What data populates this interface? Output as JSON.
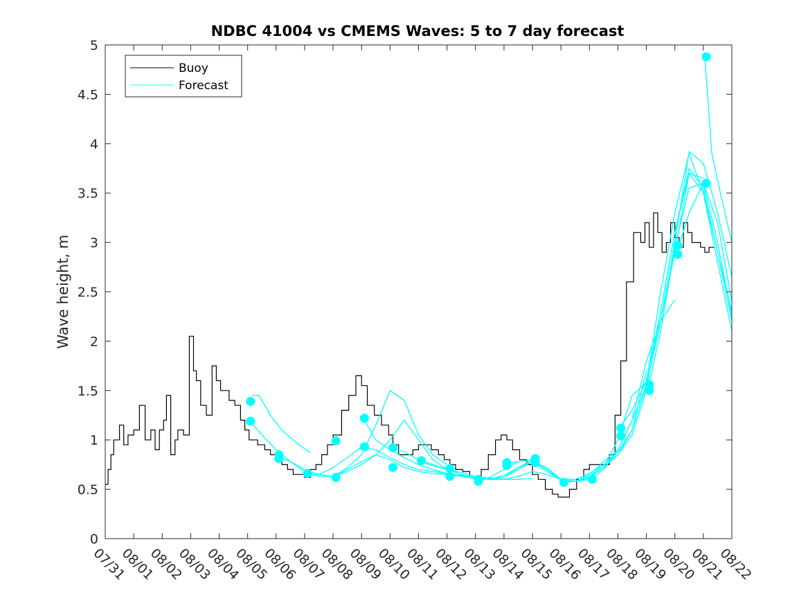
{
  "chart_data": {
    "type": "line",
    "title": "NDBC 41004 vs CMEMS Waves: 5 to 7 day forecast",
    "xlabel": "",
    "ylabel": "Wave height, m",
    "ylim": [
      0,
      5
    ],
    "yticks": [
      0,
      0.5,
      1,
      1.5,
      2,
      2.5,
      3,
      3.5,
      4,
      4.5,
      5
    ],
    "xlim_days": [
      0,
      22
    ],
    "xtick_labels": [
      "07/31",
      "08/01",
      "08/02",
      "08/03",
      "08/04",
      "08/05",
      "08/06",
      "08/07",
      "08/08",
      "08/09",
      "08/10",
      "08/11",
      "08/12",
      "08/13",
      "08/14",
      "08/15",
      "08/16",
      "08/17",
      "08/18",
      "08/19",
      "08/20",
      "08/21",
      "08/22"
    ],
    "grid": false,
    "legend_position": "top-left",
    "legend": [
      "Buoy",
      "Forecast"
    ],
    "colors": {
      "buoy": "#000000",
      "forecast": "#00ffff"
    },
    "buoy": {
      "name": "Buoy",
      "x": [
        0,
        0.1,
        0.2,
        0.3,
        0.5,
        0.65,
        0.8,
        1.0,
        1.2,
        1.4,
        1.6,
        1.75,
        1.9,
        2.05,
        2.15,
        2.3,
        2.45,
        2.55,
        2.75,
        2.95,
        3.1,
        3.2,
        3.35,
        3.55,
        3.75,
        3.9,
        4.05,
        4.2,
        4.35,
        4.55,
        4.75,
        4.9,
        5.05,
        5.2,
        5.35,
        5.6,
        5.8,
        6.0,
        6.2,
        6.4,
        6.6,
        6.8,
        7.0,
        7.2,
        7.4,
        7.6,
        7.8,
        8.0,
        8.3,
        8.55,
        8.8,
        9.0,
        9.2,
        9.45,
        9.7,
        9.95,
        10.1,
        10.3,
        10.55,
        10.8,
        11.0,
        11.2,
        11.45,
        11.7,
        11.9,
        12.1,
        12.3,
        12.55,
        12.8,
        13.0,
        13.2,
        13.45,
        13.7,
        13.9,
        14.1,
        14.3,
        14.55,
        14.8,
        15.0,
        15.2,
        15.45,
        15.7,
        15.9,
        16.1,
        16.3,
        16.55,
        16.8,
        17.0,
        17.2,
        17.45,
        17.7,
        17.9,
        18.1,
        18.3,
        18.55,
        18.8,
        18.95,
        19.1,
        19.25,
        19.4,
        19.55,
        19.7,
        19.85,
        20.0,
        20.15,
        20.3,
        20.45,
        20.6,
        20.75,
        20.9,
        21.05,
        21.2,
        21.4
      ],
      "y": [
        0.55,
        0.7,
        0.85,
        1.0,
        1.15,
        0.95,
        1.05,
        1.1,
        1.35,
        1.0,
        1.1,
        0.9,
        1.1,
        1.2,
        1.45,
        0.85,
        1.0,
        1.1,
        1.05,
        2.05,
        1.7,
        1.6,
        1.35,
        1.25,
        1.75,
        1.6,
        1.5,
        1.5,
        1.4,
        1.35,
        1.2,
        1.1,
        1.0,
        1.0,
        0.95,
        0.9,
        0.85,
        0.8,
        0.75,
        0.7,
        0.65,
        0.65,
        0.62,
        0.7,
        0.75,
        0.85,
        0.95,
        1.05,
        1.3,
        1.45,
        1.65,
        1.55,
        1.35,
        1.25,
        1.15,
        1.05,
        0.95,
        0.85,
        0.85,
        0.9,
        0.95,
        0.95,
        0.9,
        0.85,
        0.8,
        0.75,
        0.7,
        0.68,
        0.62,
        0.6,
        0.7,
        0.85,
        1.0,
        1.05,
        1.0,
        0.9,
        0.8,
        0.75,
        0.65,
        0.6,
        0.5,
        0.45,
        0.42,
        0.42,
        0.5,
        0.6,
        0.7,
        0.75,
        0.75,
        0.75,
        0.85,
        1.25,
        1.8,
        2.6,
        3.1,
        3.0,
        3.2,
        2.95,
        3.3,
        3.1,
        2.9,
        3.0,
        3.2,
        3.05,
        2.95,
        3.2,
        3.1,
        3.0,
        3.0,
        2.95,
        2.9,
        2.95,
        2.95
      ]
    },
    "forecast_lines": [
      {
        "name": "Forecast",
        "x": [
          5.15,
          5.4,
          5.8,
          6.2,
          6.8,
          7.2
        ],
        "y": [
          1.45,
          1.45,
          1.25,
          1.1,
          0.95,
          0.87
        ]
      },
      {
        "name": "Forecast",
        "x": [
          5.05,
          5.5,
          6.0,
          6.5,
          7.0,
          7.5,
          8.0,
          8.5,
          9.0,
          9.5,
          10.0,
          10.5,
          11.0,
          11.5,
          12.0
        ],
        "y": [
          1.2,
          1.05,
          0.9,
          0.78,
          0.68,
          0.63,
          0.63,
          0.72,
          0.85,
          1.15,
          1.5,
          1.4,
          1.05,
          0.85,
          0.75
        ]
      },
      {
        "name": "Forecast",
        "x": [
          6.05,
          6.5,
          7.0,
          7.5,
          8.0,
          8.5,
          9.0,
          9.5,
          10.0,
          10.5,
          11.0,
          11.5,
          12.0,
          12.5,
          13.0
        ],
        "y": [
          0.83,
          0.78,
          0.7,
          0.65,
          0.63,
          0.68,
          0.75,
          0.85,
          1.0,
          1.2,
          1.0,
          0.8,
          0.7,
          0.65,
          0.6
        ]
      },
      {
        "name": "Forecast",
        "x": [
          7.05,
          7.5,
          8.0,
          8.5,
          9.0,
          9.5,
          10.0,
          10.5,
          11.0,
          11.5,
          12.0,
          12.5,
          13.0,
          13.5,
          14.0
        ],
        "y": [
          0.65,
          0.65,
          0.72,
          0.82,
          0.93,
          0.9,
          0.82,
          0.75,
          0.7,
          0.68,
          0.66,
          0.64,
          0.62,
          0.6,
          0.6
        ]
      },
      {
        "name": "Forecast",
        "x": [
          8.05,
          8.5,
          9.0,
          9.5,
          10.0,
          10.5,
          11.0,
          11.5,
          12.0,
          12.5,
          13.0,
          13.5,
          14.0,
          14.5,
          15.0
        ],
        "y": [
          0.63,
          0.7,
          0.78,
          0.85,
          0.8,
          0.72,
          0.68,
          0.66,
          0.65,
          0.63,
          0.62,
          0.61,
          0.6,
          0.6,
          0.61
        ]
      },
      {
        "name": "Forecast",
        "x": [
          9.05,
          9.5,
          10.0,
          10.5,
          11.0,
          11.5,
          12.0,
          12.5,
          13.0,
          13.5,
          14.0,
          14.5,
          15.0,
          15.5,
          16.0
        ],
        "y": [
          1.22,
          1.0,
          0.9,
          0.82,
          0.75,
          0.7,
          0.66,
          0.63,
          0.61,
          0.6,
          0.6,
          0.63,
          0.68,
          0.65,
          0.6
        ]
      },
      {
        "name": "Forecast",
        "x": [
          10.05,
          10.5,
          11.0,
          11.5,
          12.0,
          12.5,
          13.0,
          13.5,
          14.0,
          14.5,
          15.0,
          15.5,
          16.0,
          16.5,
          17.0
        ],
        "y": [
          0.92,
          0.88,
          0.8,
          0.75,
          0.7,
          0.67,
          0.63,
          0.61,
          0.62,
          0.7,
          0.78,
          0.72,
          0.6,
          0.58,
          0.6
        ]
      },
      {
        "name": "Forecast",
        "x": [
          11.05,
          11.5,
          12.0,
          12.5,
          13.0,
          13.5,
          14.0,
          14.5,
          15.0,
          15.5,
          16.0,
          16.5,
          17.0,
          17.5,
          18.0
        ],
        "y": [
          0.78,
          0.74,
          0.7,
          0.65,
          0.62,
          0.61,
          0.62,
          0.72,
          0.8,
          0.7,
          0.6,
          0.58,
          0.62,
          0.72,
          0.85
        ]
      },
      {
        "name": "Forecast",
        "x": [
          12.05,
          12.5,
          13.0,
          13.5,
          14.0,
          14.5,
          15.0,
          15.5,
          16.0,
          16.5,
          17.0,
          17.5,
          18.0,
          18.5,
          19.0
        ],
        "y": [
          0.7,
          0.65,
          0.62,
          0.6,
          0.64,
          0.72,
          0.78,
          0.68,
          0.6,
          0.6,
          0.66,
          0.75,
          0.85,
          1.1,
          1.7
        ]
      },
      {
        "name": "Forecast",
        "x": [
          13.05,
          13.5,
          14.0,
          14.5,
          15.0,
          15.5,
          16.0,
          16.5,
          17.0,
          17.5,
          18.0,
          18.5,
          19.0,
          19.5,
          20.0
        ],
        "y": [
          0.58,
          0.62,
          0.7,
          0.78,
          0.8,
          0.7,
          0.6,
          0.58,
          0.65,
          0.78,
          0.9,
          1.2,
          1.8,
          2.2,
          2.42
        ]
      },
      {
        "name": "Forecast",
        "x": [
          14.05,
          14.5,
          15.0,
          15.5,
          16.0,
          16.5,
          17.0,
          17.5,
          18.0,
          18.5,
          19.0,
          19.5,
          20.0,
          20.5,
          21.0
        ],
        "y": [
          0.76,
          0.78,
          0.8,
          0.7,
          0.6,
          0.58,
          0.63,
          0.75,
          0.88,
          1.1,
          1.55,
          2.2,
          2.9,
          3.7,
          3.65
        ]
      },
      {
        "name": "Forecast",
        "x": [
          15.05,
          15.5,
          16.0,
          16.5,
          17.0,
          17.5,
          18.0,
          18.5,
          19.0,
          19.5,
          20.0,
          20.5,
          21.0,
          21.5,
          22.0
        ],
        "y": [
          0.78,
          0.7,
          0.6,
          0.58,
          0.62,
          0.72,
          0.85,
          1.05,
          1.5,
          2.3,
          3.1,
          3.75,
          3.55,
          2.9,
          2.2
        ]
      },
      {
        "name": "Forecast",
        "x": [
          16.05,
          16.5,
          17.0,
          17.5,
          18.0,
          18.5,
          19.0,
          19.5,
          20.0,
          20.5,
          21.0,
          21.5,
          22.0
        ],
        "y": [
          0.57,
          0.58,
          0.63,
          0.72,
          1.0,
          1.45,
          1.58,
          2.5,
          3.3,
          3.9,
          3.5,
          2.8,
          2.1
        ]
      },
      {
        "name": "Forecast",
        "x": [
          17.05,
          17.5,
          18.0,
          18.5,
          19.0,
          19.5,
          20.0,
          20.5,
          21.0,
          21.5,
          22.0
        ],
        "y": [
          0.6,
          0.7,
          0.9,
          1.2,
          1.55,
          2.2,
          3.0,
          3.92,
          3.8,
          3.3,
          2.65
        ]
      },
      {
        "name": "Forecast",
        "x": [
          18.05,
          18.5,
          19.0,
          19.5,
          20.0,
          20.5,
          21.0,
          21.5,
          22.0
        ],
        "y": [
          1.12,
          1.3,
          1.6,
          2.3,
          3.1,
          3.7,
          3.5,
          2.9,
          2.3
        ]
      },
      {
        "name": "Forecast",
        "x": [
          19.05,
          19.5,
          20.0,
          20.5,
          21.0,
          21.5,
          22.0
        ],
        "y": [
          1.5,
          2.1,
          2.95,
          3.55,
          3.6,
          3.0,
          2.25
        ]
      },
      {
        "name": "Forecast",
        "x": [
          20.05,
          20.5,
          21.0,
          21.5,
          22.0
        ],
        "y": [
          2.88,
          3.3,
          3.6,
          3.2,
          2.4
        ]
      },
      {
        "name": "Forecast",
        "x": [
          21.05,
          21.3,
          21.6,
          22.0
        ],
        "y": [
          4.88,
          3.9,
          3.5,
          3.0
        ]
      }
    ],
    "forecast_markers": {
      "x": [
        5.1,
        5.1,
        6.1,
        6.1,
        7.1,
        8.1,
        8.1,
        9.1,
        9.1,
        10.1,
        10.1,
        11.1,
        12.1,
        12.1,
        13.1,
        13.1,
        14.1,
        14.1,
        15.1,
        15.1,
        16.1,
        17.1,
        18.1,
        18.1,
        19.1,
        19.1,
        20.1,
        20.1,
        21.1,
        21.1
      ],
      "y": [
        1.39,
        1.19,
        0.85,
        0.81,
        0.66,
        0.99,
        0.62,
        1.22,
        0.93,
        0.92,
        0.72,
        0.79,
        0.71,
        0.63,
        0.6,
        0.58,
        0.77,
        0.74,
        0.81,
        0.77,
        0.57,
        0.6,
        1.12,
        1.04,
        1.56,
        1.5,
        2.97,
        2.88,
        4.88,
        3.6
      ]
    }
  }
}
